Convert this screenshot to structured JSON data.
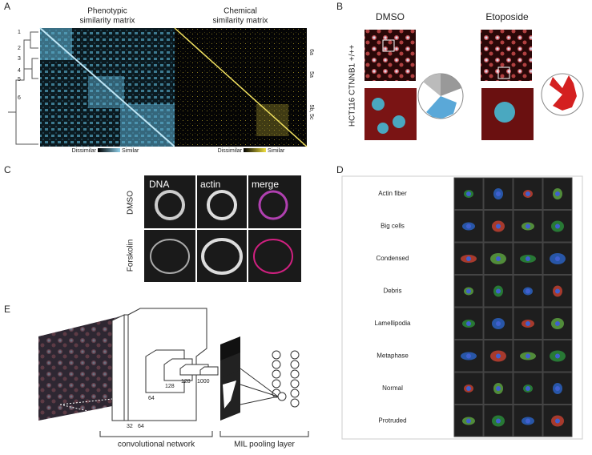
{
  "panels": {
    "a": {
      "letter": "A",
      "phenotypic_title": [
        "Phenotypic",
        "similarity matrix"
      ],
      "chemical_title": [
        "Chemical",
        "similarity matrix"
      ],
      "clusters": [
        "1",
        "2",
        "3",
        "4",
        "5",
        "6"
      ],
      "phenotypic_scale": [
        "Dissimilar",
        "Similar"
      ],
      "chemical_scale": [
        "Dissimilar",
        "Similar"
      ],
      "side_labels": [
        "6a",
        "5a",
        "5b, 5c"
      ]
    },
    "b": {
      "letter": "B",
      "conditions": [
        "DMSO",
        "Etoposide"
      ],
      "cell_line": "HCT116 CTNNB1 +/++"
    },
    "c": {
      "letter": "C",
      "channels": [
        "DNA",
        "actin",
        "merge"
      ],
      "rows": [
        "DMSO",
        "Forskolin"
      ]
    },
    "d": {
      "letter": "D",
      "classes": [
        "Actin fiber",
        "Big cells",
        "Condensed",
        "Debris",
        "Lamellipodia",
        "Metaphase",
        "Normal",
        "Protruded"
      ]
    },
    "e": {
      "letter": "E",
      "layer_sizes": [
        "32",
        "64",
        "64",
        "128",
        "128",
        "1000"
      ],
      "sections": [
        "convolutional network",
        "MIL pooling layer"
      ]
    }
  }
}
